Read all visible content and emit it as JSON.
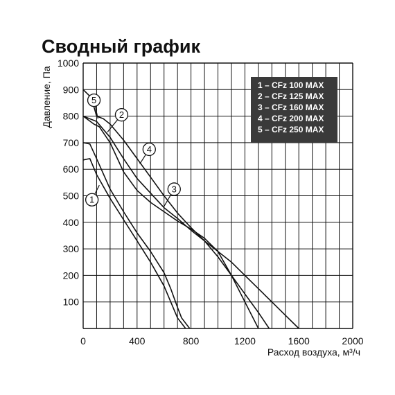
{
  "chart_data": {
    "type": "line",
    "title": "Сводный график",
    "xlabel": "Расход воздуха, м³/ч",
    "ylabel": "Давление, Па",
    "xlim": [
      0,
      2000
    ],
    "ylim": [
      0,
      1000
    ],
    "x_ticks": [
      0,
      400,
      800,
      1200,
      1600,
      2000
    ],
    "y_ticks": [
      100,
      200,
      300,
      400,
      500,
      600,
      700,
      800,
      900,
      1000
    ],
    "grid": true,
    "legend_position": "top-right",
    "legend": [
      "1 – CFz 100 MAX",
      "2 – CFz 125 MAX",
      "3 – CFz 160 MAX",
      "4 – CFz 200 MAX",
      "5 – CFz 250 MAX"
    ],
    "colors": {
      "line": "#111111",
      "grid": "#111111",
      "legend_bg": "#3a3a3a",
      "legend_text": "#ffffff"
    },
    "series": [
      {
        "label": "1",
        "x": [
          0,
          50,
          100,
          200,
          300,
          400,
          500,
          600,
          650,
          700,
          760
        ],
        "y": [
          635,
          640,
          580,
          490,
          410,
          330,
          250,
          160,
          100,
          40,
          0
        ]
      },
      {
        "label": "2",
        "x": [
          0,
          50,
          100,
          200,
          300,
          400,
          500,
          600,
          650,
          700,
          730,
          790
        ],
        "y": [
          700,
          695,
          640,
          525,
          440,
          360,
          290,
          210,
          150,
          80,
          40,
          0
        ]
      },
      {
        "label": "3",
        "x": [
          0,
          80,
          120,
          200,
          300,
          400,
          500,
          600,
          700,
          800,
          900,
          1000,
          1100,
          1200,
          1300
        ],
        "y": [
          800,
          770,
          760,
          700,
          590,
          520,
          475,
          440,
          405,
          375,
          340,
          290,
          200,
          100,
          0
        ]
      },
      {
        "label": "4",
        "x": [
          0,
          100,
          200,
          300,
          400,
          500,
          600,
          700,
          800,
          900,
          1000,
          1100,
          1200,
          1300,
          1380
        ],
        "y": [
          800,
          780,
          720,
          640,
          565,
          510,
          455,
          415,
          370,
          330,
          270,
          200,
          130,
          60,
          0
        ]
      },
      {
        "label": "5",
        "x": [
          0,
          60,
          100,
          150,
          200,
          300,
          400,
          500,
          600,
          700,
          800,
          900,
          1000,
          1100,
          1200,
          1300,
          1400,
          1500,
          1600
        ],
        "y": [
          900,
          870,
          800,
          790,
          770,
          710,
          640,
          570,
          500,
          435,
          380,
          330,
          290,
          250,
          200,
          150,
          100,
          50,
          0
        ]
      }
    ],
    "curve_labels": [
      {
        "text": "1",
        "circle_x": 65,
        "circle_y": 485,
        "leader_x": 120,
        "leader_y": 540
      },
      {
        "text": "2",
        "circle_x": 285,
        "circle_y": 805,
        "leader_x": 180,
        "leader_y": 740
      },
      {
        "text": "3",
        "circle_x": 675,
        "circle_y": 525,
        "leader_x": 600,
        "leader_y": 460
      },
      {
        "text": "4",
        "circle_x": 490,
        "circle_y": 675,
        "leader_x": 420,
        "leader_y": 620
      },
      {
        "text": "5",
        "circle_x": 80,
        "circle_y": 860,
        "leader_x": 110,
        "leader_y": 790
      }
    ]
  }
}
